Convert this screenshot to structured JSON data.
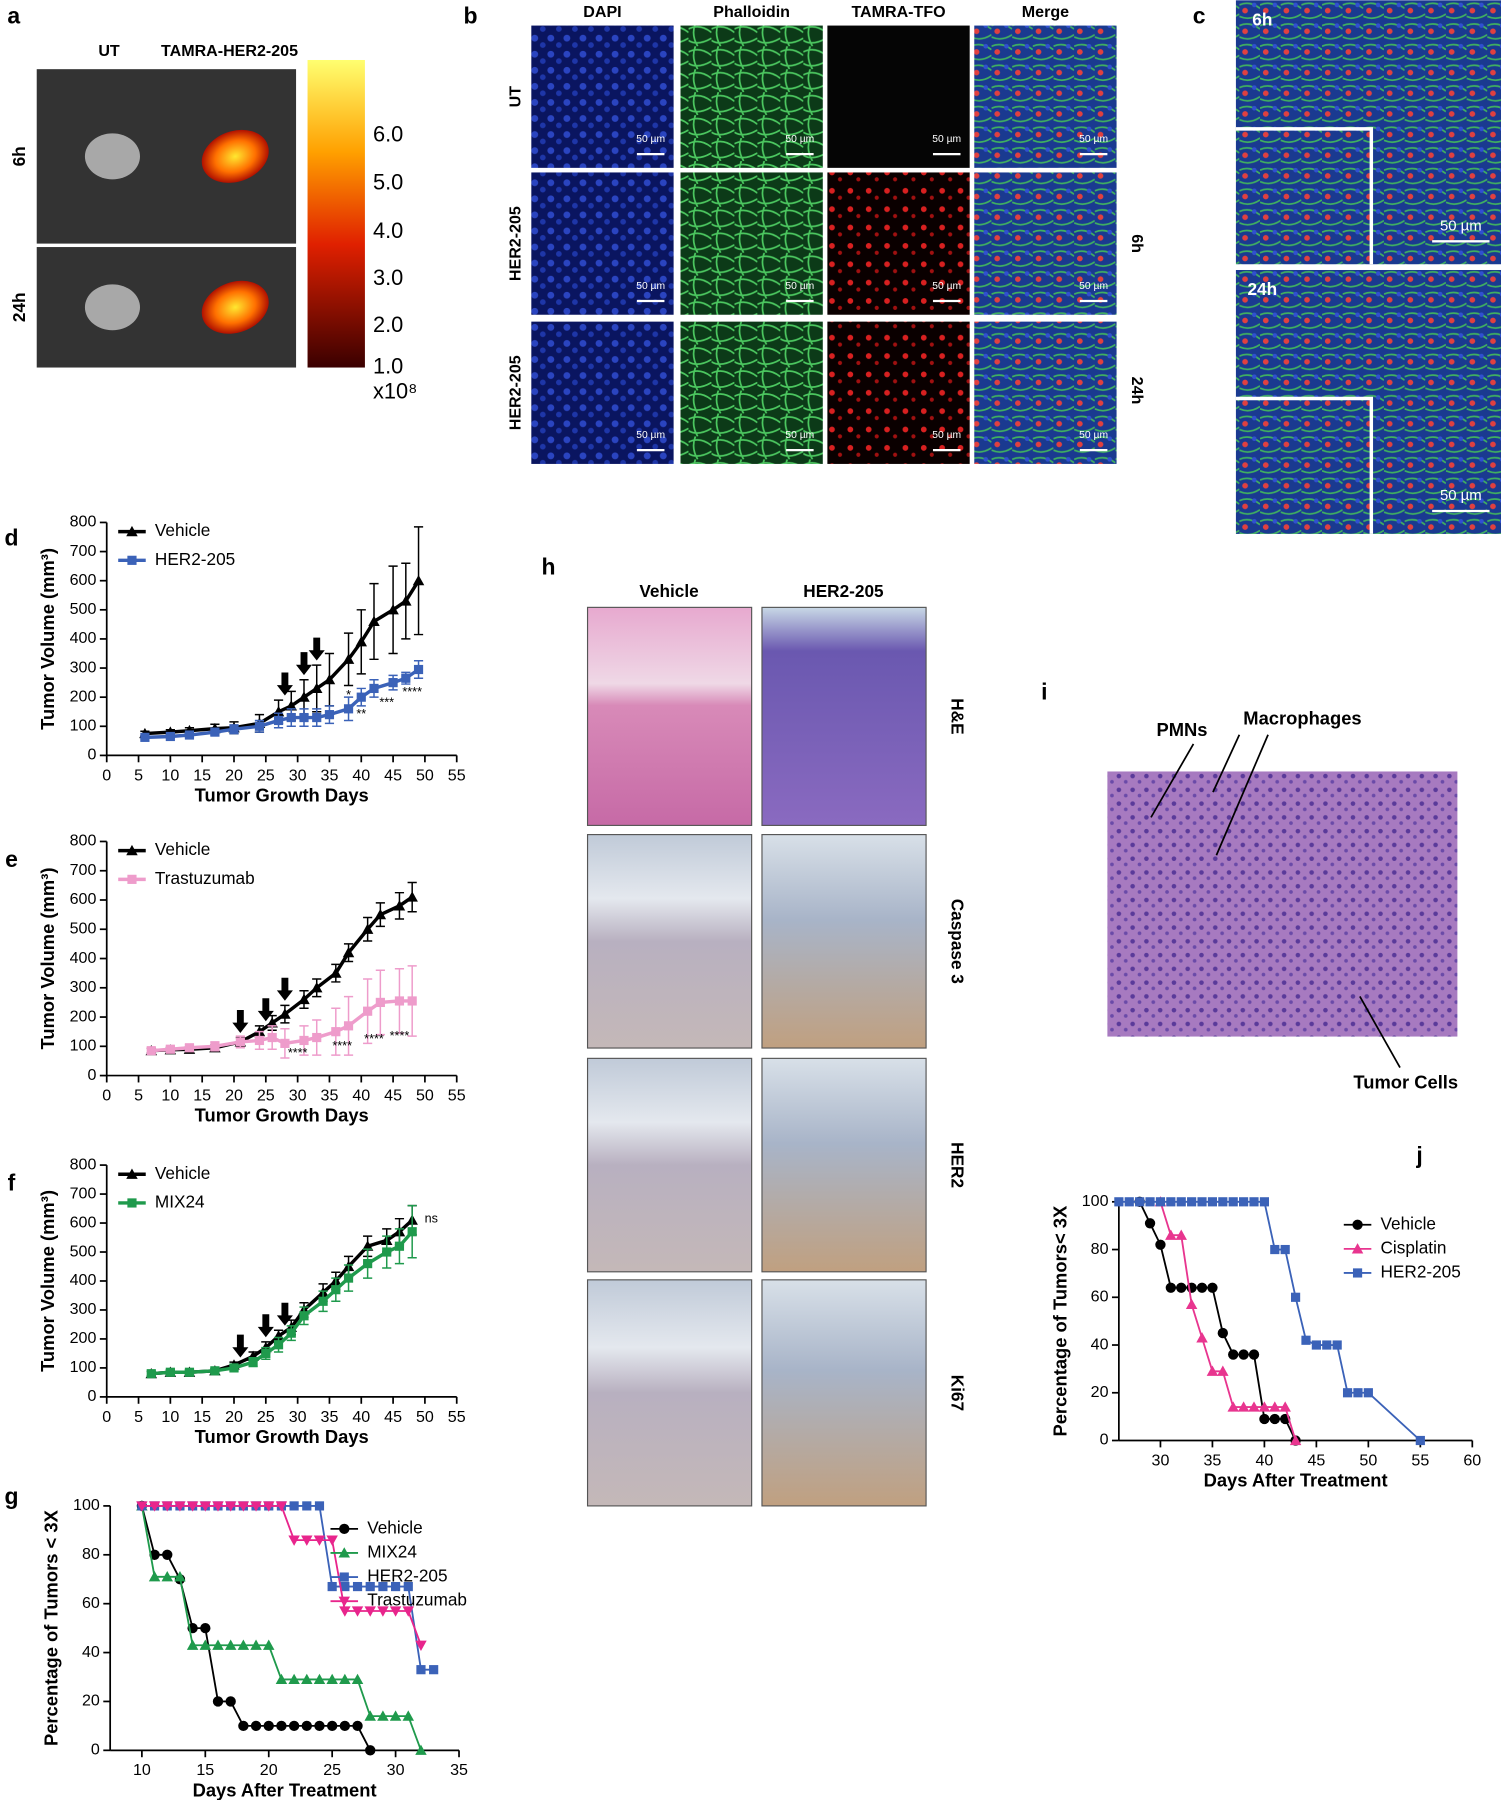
{
  "figure": {
    "a": {
      "label": "a",
      "columns": [
        "UT",
        "TAMRA-HER2-205"
      ],
      "rows": [
        "6h",
        "24h"
      ],
      "colorbar_ticks": [
        "6.0",
        "5.0",
        "4.0",
        "3.0",
        "2.0",
        "1.0"
      ],
      "colorbar_unit": "x10⁸"
    },
    "b": {
      "label": "b",
      "columns": [
        "DAPI",
        "Phalloidin",
        "TAMRA-TFO",
        "Merge"
      ],
      "rows": [
        "UT",
        "HER2-205",
        "HER2-205"
      ],
      "times": [
        "6h",
        "24h"
      ],
      "scale_bar": "50 µm"
    },
    "c": {
      "label": "c",
      "times": [
        "6h",
        "24h"
      ],
      "scale_bar": "50 µm"
    },
    "h": {
      "label": "h",
      "columns": [
        "Vehicle",
        "HER2-205"
      ],
      "rows": [
        "H&E",
        "Caspase 3",
        "HER2",
        "Ki67"
      ]
    },
    "i": {
      "label": "i",
      "annotations": [
        "PMNs",
        "Macrophages",
        "Tumor Cells"
      ]
    }
  },
  "chart_data": [
    {
      "type": "line",
      "panel": "d",
      "xlabel": "Tumor Growth Days",
      "ylabel": "Tumor Volume (mm³)",
      "xlim": [
        0,
        55
      ],
      "xticks": [
        0,
        5,
        10,
        15,
        20,
        25,
        30,
        35,
        40,
        45,
        50,
        55
      ],
      "ylim": [
        0,
        800
      ],
      "yticks": [
        0,
        100,
        200,
        300,
        400,
        500,
        600,
        700,
        800
      ],
      "legend": "upper left",
      "treatment_days": [
        28,
        31,
        33
      ],
      "series": [
        {
          "name": "Vehicle",
          "color": "#000000",
          "marker": "triangle",
          "x": [
            6,
            10,
            13,
            17,
            20,
            24,
            27,
            29,
            31,
            33,
            35,
            38,
            40,
            42,
            45,
            47,
            49
          ],
          "values": [
            75,
            80,
            85,
            92,
            95,
            110,
            150,
            170,
            200,
            230,
            260,
            330,
            390,
            460,
            500,
            530,
            600
          ],
          "errors": [
            8,
            8,
            10,
            15,
            20,
            30,
            40,
            50,
            60,
            80,
            90,
            90,
            110,
            130,
            150,
            130,
            185
          ]
        },
        {
          "name": "HER2-205",
          "color": "#3b62b8",
          "marker": "square",
          "x": [
            6,
            10,
            13,
            17,
            20,
            24,
            27,
            29,
            31,
            33,
            35,
            38,
            40,
            42,
            45,
            47,
            49
          ],
          "values": [
            62,
            65,
            70,
            80,
            90,
            100,
            120,
            130,
            130,
            130,
            140,
            160,
            200,
            230,
            250,
            265,
            295
          ],
          "errors": [
            5,
            5,
            8,
            10,
            15,
            20,
            25,
            30,
            30,
            30,
            30,
            40,
            30,
            30,
            25,
            20,
            30
          ]
        }
      ],
      "annotations": [
        {
          "text": "*",
          "x": 38,
          "y": 205
        },
        {
          "text": "**",
          "x": 40,
          "y": 140
        },
        {
          "text": "***",
          "x": 44,
          "y": 180
        },
        {
          "text": "****",
          "x": 48,
          "y": 215
        }
      ]
    },
    {
      "type": "line",
      "panel": "e",
      "xlabel": "Tumor Growth Days",
      "ylabel": "Tumor Volume (mm³)",
      "xlim": [
        0,
        55
      ],
      "xticks": [
        0,
        5,
        10,
        15,
        20,
        25,
        30,
        35,
        40,
        45,
        50,
        55
      ],
      "ylim": [
        0,
        800
      ],
      "yticks": [
        0,
        100,
        200,
        300,
        400,
        500,
        600,
        700,
        800
      ],
      "legend": "upper left",
      "treatment_days": [
        21,
        25,
        28
      ],
      "series": [
        {
          "name": "Vehicle",
          "color": "#000000",
          "marker": "triangle",
          "x": [
            7,
            10,
            13,
            17,
            21,
            24,
            26,
            28,
            31,
            33,
            36,
            38,
            41,
            43,
            46,
            48
          ],
          "values": [
            85,
            88,
            90,
            95,
            115,
            150,
            180,
            210,
            260,
            300,
            350,
            420,
            500,
            550,
            580,
            610
          ],
          "errors": [
            8,
            8,
            8,
            10,
            15,
            20,
            25,
            30,
            30,
            30,
            30,
            30,
            40,
            40,
            45,
            50
          ]
        },
        {
          "name": "Trastuzumab",
          "color": "#ee9ccb",
          "marker": "square",
          "x": [
            7,
            10,
            13,
            17,
            21,
            24,
            26,
            28,
            31,
            33,
            36,
            38,
            41,
            43,
            46,
            48
          ],
          "values": [
            85,
            90,
            95,
            100,
            115,
            120,
            130,
            110,
            120,
            130,
            150,
            170,
            220,
            250,
            255,
            255
          ],
          "errors": [
            10,
            10,
            10,
            15,
            20,
            30,
            40,
            50,
            50,
            60,
            80,
            100,
            110,
            110,
            110,
            120
          ]
        }
      ],
      "annotations": [
        {
          "text": "****",
          "x": 30,
          "y": 75
        },
        {
          "text": "****",
          "x": 37,
          "y": 98
        },
        {
          "text": "****",
          "x": 42,
          "y": 122
        },
        {
          "text": "****",
          "x": 46,
          "y": 133
        }
      ]
    },
    {
      "type": "line",
      "panel": "f",
      "xlabel": "Tumor Growth Days",
      "ylabel": "Tumor Volume (mm³)",
      "xlim": [
        0,
        55
      ],
      "xticks": [
        0,
        5,
        10,
        15,
        20,
        25,
        30,
        35,
        40,
        45,
        50,
        55
      ],
      "ylim": [
        0,
        800
      ],
      "yticks": [
        0,
        100,
        200,
        300,
        400,
        500,
        600,
        700,
        800
      ],
      "legend": "upper left",
      "treatment_days": [
        21,
        25,
        28
      ],
      "series": [
        {
          "name": "Vehicle",
          "color": "#000000",
          "marker": "triangle",
          "x": [
            7,
            10,
            13,
            17,
            20,
            23,
            25,
            27,
            29,
            31,
            34,
            36,
            38,
            41,
            44,
            46,
            48
          ],
          "values": [
            80,
            85,
            85,
            90,
            110,
            140,
            170,
            210,
            240,
            300,
            360,
            400,
            450,
            520,
            540,
            570,
            610
          ],
          "errors": [
            8,
            8,
            8,
            8,
            10,
            15,
            20,
            20,
            25,
            25,
            30,
            30,
            35,
            35,
            40,
            45,
            50
          ]
        },
        {
          "name": "MIX24",
          "color": "#1f9a4c",
          "marker": "square",
          "x": [
            7,
            10,
            13,
            17,
            20,
            23,
            25,
            27,
            29,
            31,
            34,
            36,
            38,
            41,
            44,
            46,
            48
          ],
          "values": [
            80,
            85,
            85,
            90,
            100,
            120,
            150,
            180,
            220,
            280,
            330,
            370,
            410,
            460,
            500,
            520,
            570
          ],
          "errors": [
            8,
            8,
            8,
            8,
            10,
            15,
            20,
            25,
            25,
            30,
            35,
            40,
            45,
            50,
            55,
            60,
            90
          ]
        }
      ],
      "annotations": [
        {
          "text": "ns",
          "x": 51,
          "y": 614
        }
      ]
    },
    {
      "type": "line",
      "panel": "g",
      "xlabel": "Days After Treatment",
      "ylabel": "Percentage of Tumors < 3X",
      "xlim": [
        7.5,
        35
      ],
      "xticks": [
        10,
        15,
        20,
        25,
        30,
        35
      ],
      "ylim": [
        0,
        100
      ],
      "yticks": [
        0,
        20,
        40,
        60,
        80,
        100
      ],
      "legend": "upper right",
      "series": [
        {
          "name": "Vehicle",
          "color": "#000000",
          "marker": "circle",
          "x": [
            10,
            11,
            12,
            13,
            14,
            15,
            16,
            17,
            18,
            19,
            20,
            21,
            22,
            23,
            24,
            25,
            26,
            27,
            28
          ],
          "values": [
            100,
            80,
            80,
            70,
            50,
            50,
            20,
            20,
            10,
            10,
            10,
            10,
            10,
            10,
            10,
            10,
            10,
            10,
            0
          ]
        },
        {
          "name": "MIX24",
          "color": "#1f9a4c",
          "marker": "triangle",
          "x": [
            10,
            11,
            12,
            13,
            14,
            15,
            16,
            17,
            18,
            19,
            20,
            21,
            22,
            23,
            24,
            25,
            26,
            27,
            28,
            29,
            30,
            31,
            32
          ],
          "values": [
            100,
            71,
            71,
            71,
            43,
            43,
            43,
            43,
            43,
            43,
            43,
            29,
            29,
            29,
            29,
            29,
            29,
            29,
            14,
            14,
            14,
            14,
            0
          ]
        },
        {
          "name": "HER2-205",
          "color": "#3b62b8",
          "marker": "square",
          "x": [
            10,
            11,
            12,
            13,
            14,
            15,
            16,
            17,
            18,
            19,
            20,
            21,
            22,
            23,
            24,
            25,
            26,
            27,
            28,
            29,
            30,
            31,
            32,
            33
          ],
          "values": [
            100,
            100,
            100,
            100,
            100,
            100,
            100,
            100,
            100,
            100,
            100,
            100,
            100,
            100,
            100,
            67,
            67,
            67,
            67,
            67,
            67,
            67,
            33,
            33
          ]
        },
        {
          "name": "Trastuzumab",
          "color": "#e8258c",
          "marker": "triangle-down",
          "x": [
            10,
            11,
            12,
            13,
            14,
            15,
            16,
            17,
            18,
            19,
            20,
            21,
            22,
            23,
            24,
            25,
            26,
            27,
            28,
            29,
            30,
            31,
            32
          ],
          "values": [
            100,
            100,
            100,
            100,
            100,
            100,
            100,
            100,
            100,
            100,
            100,
            100,
            86,
            86,
            86,
            86,
            57,
            57,
            57,
            57,
            57,
            57,
            43
          ]
        }
      ]
    },
    {
      "type": "line",
      "panel": "j",
      "xlabel": "Days After Treatment",
      "ylabel": "Percentage of Tumors< 3X",
      "xlim": [
        26,
        60
      ],
      "xticks": [
        30,
        35,
        40,
        45,
        50,
        55,
        60
      ],
      "ylim": [
        0,
        100
      ],
      "yticks": [
        0,
        20,
        40,
        60,
        80,
        100
      ],
      "legend": "upper right",
      "series": [
        {
          "name": "Vehicle",
          "color": "#000000",
          "marker": "circle",
          "x": [
            28,
            29,
            30,
            31,
            32,
            33,
            34,
            35,
            36,
            37,
            38,
            39,
            40,
            41,
            42,
            43
          ],
          "values": [
            100,
            91,
            82,
            64,
            64,
            64,
            64,
            64,
            45,
            36,
            36,
            36,
            9,
            9,
            9,
            0
          ]
        },
        {
          "name": "Cisplatin",
          "color": "#e8358f",
          "marker": "triangle",
          "x": [
            30,
            31,
            32,
            33,
            34,
            35,
            36,
            37,
            38,
            39,
            40,
            41,
            42,
            43
          ],
          "values": [
            100,
            86,
            86,
            57,
            43,
            29,
            29,
            14,
            14,
            14,
            14,
            14,
            14,
            0
          ]
        },
        {
          "name": "HER2-205",
          "color": "#3b62b8",
          "marker": "square",
          "x": [
            26,
            27,
            28,
            29,
            30,
            31,
            32,
            33,
            34,
            35,
            36,
            37,
            38,
            39,
            40,
            41,
            42,
            43,
            44,
            45,
            46,
            47,
            48,
            49,
            50,
            55
          ],
          "values": [
            100,
            100,
            100,
            100,
            100,
            100,
            100,
            100,
            100,
            100,
            100,
            100,
            100,
            100,
            100,
            80,
            80,
            60,
            42,
            40,
            40,
            40,
            20,
            20,
            20,
            0
          ]
        }
      ]
    }
  ]
}
